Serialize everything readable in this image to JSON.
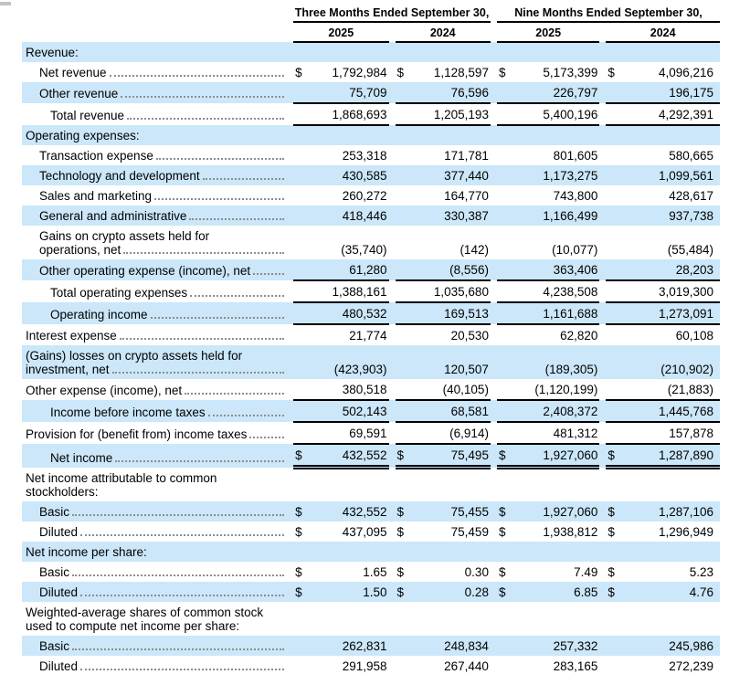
{
  "dollar_sign": "$",
  "colors": {
    "row_highlight": "#cbe7f9",
    "rule": "#000000",
    "leader_dots": "#8d8d8d"
  },
  "header": {
    "period_groups": [
      {
        "label": "Three Months Ended September 30,"
      },
      {
        "label": "Nine Months Ended September 30,"
      }
    ],
    "years": [
      "2025",
      "2024",
      "2025",
      "2024"
    ]
  },
  "rows": [
    {
      "label": "Revenue:",
      "indent": 0,
      "shaded": true,
      "leaders": false,
      "dollar": false,
      "values": null,
      "rule": "none"
    },
    {
      "label": "Net revenue",
      "indent": 1,
      "shaded": false,
      "leaders": true,
      "dollar": true,
      "values": [
        "1,792,984",
        "1,128,597",
        "5,173,399",
        "4,096,216"
      ],
      "rule": "none"
    },
    {
      "label": "Other revenue",
      "indent": 1,
      "shaded": true,
      "leaders": true,
      "dollar": false,
      "values": [
        "75,709",
        "76,596",
        "226,797",
        "196,175"
      ],
      "rule": "single"
    },
    {
      "label": "Total revenue",
      "indent": 2,
      "shaded": false,
      "leaders": true,
      "dollar": false,
      "values": [
        "1,868,693",
        "1,205,193",
        "5,400,196",
        "4,292,391"
      ],
      "rule": "single"
    },
    {
      "label": "Operating expenses:",
      "indent": 0,
      "shaded": true,
      "leaders": false,
      "dollar": false,
      "values": null,
      "rule": "none"
    },
    {
      "label": "Transaction expense",
      "indent": 1,
      "shaded": false,
      "leaders": true,
      "dollar": false,
      "values": [
        "253,318",
        "171,781",
        "801,605",
        "580,665"
      ],
      "rule": "none"
    },
    {
      "label": "Technology and development",
      "indent": 1,
      "shaded": true,
      "leaders": true,
      "dollar": false,
      "values": [
        "430,585",
        "377,440",
        "1,173,275",
        "1,099,561"
      ],
      "rule": "none"
    },
    {
      "label": "Sales and marketing",
      "indent": 1,
      "shaded": false,
      "leaders": true,
      "dollar": false,
      "values": [
        "260,272",
        "164,770",
        "743,800",
        "428,617"
      ],
      "rule": "none"
    },
    {
      "label": "General and administrative",
      "indent": 1,
      "shaded": true,
      "leaders": true,
      "dollar": false,
      "values": [
        "418,446",
        "330,387",
        "1,166,499",
        "937,738"
      ],
      "rule": "none"
    },
    {
      "label": "Gains on crypto assets held for",
      "label2": "operations, net",
      "indent": 1,
      "shaded": false,
      "leaders": true,
      "dollar": false,
      "values": [
        "(35,740)",
        "(142)",
        "(10,077)",
        "(55,484)"
      ],
      "rule": "none"
    },
    {
      "label": "Other operating expense (income), net",
      "indent": 1,
      "shaded": true,
      "leaders": true,
      "dollar": false,
      "values": [
        "61,280",
        "(8,556)",
        "363,406",
        "28,203"
      ],
      "rule": "single"
    },
    {
      "label": "Total operating expenses",
      "indent": 2,
      "shaded": false,
      "leaders": true,
      "dollar": false,
      "values": [
        "1,388,161",
        "1,035,680",
        "4,238,508",
        "3,019,300"
      ],
      "rule": "single"
    },
    {
      "label": "Operating income",
      "indent": 2,
      "shaded": true,
      "leaders": true,
      "dollar": false,
      "values": [
        "480,532",
        "169,513",
        "1,161,688",
        "1,273,091"
      ],
      "rule": "single"
    },
    {
      "label": "Interest expense",
      "indent": 0,
      "shaded": false,
      "leaders": true,
      "dollar": false,
      "values": [
        "21,774",
        "20,530",
        "62,820",
        "60,108"
      ],
      "rule": "none"
    },
    {
      "label": "(Gains) losses on crypto assets held for",
      "label2": "investment, net",
      "indent": 0,
      "shaded": true,
      "leaders": true,
      "dollar": false,
      "values": [
        "(423,903)",
        "120,507",
        "(189,305)",
        "(210,902)"
      ],
      "rule": "none"
    },
    {
      "label": "Other expense (income), net",
      "indent": 0,
      "shaded": false,
      "leaders": true,
      "dollar": false,
      "values": [
        "380,518",
        "(40,105)",
        "(1,120,199)",
        "(21,883)"
      ],
      "rule": "single"
    },
    {
      "label": "Income before income taxes",
      "indent": 2,
      "shaded": true,
      "leaders": true,
      "dollar": false,
      "values": [
        "502,143",
        "68,581",
        "2,408,372",
        "1,445,768"
      ],
      "rule": "single"
    },
    {
      "label": "Provision for (benefit from) income taxes",
      "indent": 0,
      "shaded": false,
      "leaders": true,
      "dollar": false,
      "values": [
        "69,591",
        "(6,914)",
        "481,312",
        "157,878"
      ],
      "rule": "single"
    },
    {
      "label": "Net income",
      "indent": 2,
      "shaded": true,
      "leaders": true,
      "dollar": true,
      "values": [
        "432,552",
        "75,495",
        "1,927,060",
        "1,287,890"
      ],
      "rule": "double"
    },
    {
      "label": "Net income attributable to common",
      "label2": "stockholders:",
      "indent": 0,
      "shaded": false,
      "leaders": false,
      "dollar": false,
      "values": null,
      "rule": "none"
    },
    {
      "label": "Basic",
      "indent": 1,
      "shaded": true,
      "leaders": true,
      "dollar": true,
      "values": [
        "432,552",
        "75,455",
        "1,927,060",
        "1,287,106"
      ],
      "rule": "none"
    },
    {
      "label": "Diluted",
      "indent": 1,
      "shaded": false,
      "leaders": true,
      "dollar": true,
      "values": [
        "437,095",
        "75,459",
        "1,938,812",
        "1,296,949"
      ],
      "rule": "none"
    },
    {
      "label": "Net income per share:",
      "indent": 0,
      "shaded": true,
      "leaders": false,
      "dollar": false,
      "values": null,
      "rule": "none"
    },
    {
      "label": "Basic",
      "indent": 1,
      "shaded": false,
      "leaders": true,
      "dollar": true,
      "values": [
        "1.65",
        "0.30",
        "7.49",
        "5.23"
      ],
      "rule": "none"
    },
    {
      "label": "Diluted",
      "indent": 1,
      "shaded": true,
      "leaders": true,
      "dollar": true,
      "values": [
        "1.50",
        "0.28",
        "6.85",
        "4.76"
      ],
      "rule": "none"
    },
    {
      "label": "Weighted-average shares of common stock",
      "label2": "used to compute net income per share:",
      "indent": 0,
      "shaded": false,
      "leaders": false,
      "dollar": false,
      "values": null,
      "rule": "none"
    },
    {
      "label": "Basic",
      "indent": 1,
      "shaded": true,
      "leaders": true,
      "dollar": false,
      "values": [
        "262,831",
        "248,834",
        "257,332",
        "245,986"
      ],
      "rule": "none"
    },
    {
      "label": "Diluted",
      "indent": 1,
      "shaded": false,
      "leaders": true,
      "dollar": false,
      "values": [
        "291,958",
        "267,440",
        "283,165",
        "272,239"
      ],
      "rule": "none"
    }
  ]
}
